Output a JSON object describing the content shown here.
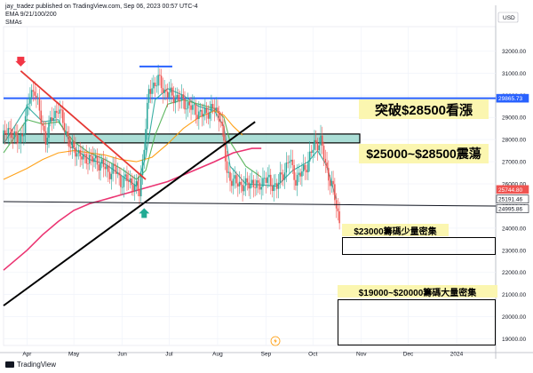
{
  "header": {
    "publisher": "jay_tradez published on TradingView.com, Sep 06, 2023 00:57 UTC-4",
    "indicator": "EMA 9/21/100/200",
    "smas": "SMAs"
  },
  "currency": "USD",
  "footer": {
    "brand": "TradingView"
  },
  "colors": {
    "hline_blue": "#2962ff",
    "zone_teal": "#8fd3c8",
    "price_up": "#26a69a",
    "price_down": "#ef5350",
    "ema9": "#26a69a",
    "ema21": "#4caf50",
    "ema100": "#ff9800",
    "ema200": "#e91e63",
    "trend_red": "#e53935",
    "trend_black": "#000000",
    "annotation_yellow": "#fbf6b0"
  },
  "chart_data": {
    "type": "line",
    "title": "",
    "xlabel": "",
    "ylabel": "",
    "ylim": [
      18700,
      33100
    ],
    "y_ticks": [
      19000,
      20000,
      21000,
      22000,
      23000,
      24000,
      25000,
      26000,
      27000,
      28000,
      29000,
      30000,
      31000,
      32000
    ],
    "x_ticks": [
      {
        "label": "Apr",
        "day": 90
      },
      {
        "label": "May",
        "day": 120
      },
      {
        "label": "Jun",
        "day": 151
      },
      {
        "label": "Jul",
        "day": 181
      },
      {
        "label": "Aug",
        "day": 212
      },
      {
        "label": "Sep",
        "day": 243
      },
      {
        "label": "Oct",
        "day": 273
      },
      {
        "label": "Nov",
        "day": 304
      },
      {
        "label": "Dec",
        "day": 334
      },
      {
        "label": "2024",
        "day": 365
      }
    ],
    "xlim_day": [
      75,
      390
    ],
    "price_labels": [
      {
        "value": 29865.73,
        "text": "29865.73",
        "color": "#2962ff"
      },
      {
        "value": 25744.8,
        "text": "25744.80",
        "color": "#ef5350"
      },
      {
        "value": 25191.46,
        "text": "25191.46",
        "color": "#131722"
      },
      {
        "value": 24995.86,
        "text": "24995.86",
        "color": "#131722"
      }
    ],
    "price_path": {
      "days": [
        75,
        80,
        85,
        88,
        92,
        95,
        98,
        102,
        106,
        110,
        114,
        118,
        122,
        126,
        130,
        134,
        138,
        142,
        146,
        150,
        154,
        158,
        162,
        165,
        168,
        170,
        174,
        178,
        182,
        186,
        190,
        194,
        198,
        202,
        206,
        210,
        214,
        218,
        222,
        226,
        230,
        234,
        238,
        242,
        246,
        250,
        254,
        258,
        262,
        266,
        270,
        274,
        278,
        282,
        286,
        290
      ],
      "close": [
        28200,
        28400,
        27800,
        28600,
        30000,
        30300,
        29200,
        28000,
        29000,
        29400,
        28600,
        27600,
        27500,
        27100,
        27200,
        27000,
        26900,
        26500,
        26700,
        26100,
        26200,
        26000,
        25600,
        27800,
        30100,
        30400,
        30700,
        30200,
        30000,
        29900,
        29700,
        29500,
        29300,
        29100,
        29300,
        29400,
        29000,
        26500,
        26100,
        26000,
        25900,
        26100,
        25800,
        26300,
        26000,
        25900,
        26500,
        27100,
        26200,
        26500,
        27000,
        27800,
        27900,
        26600,
        25700,
        24300
      ]
    },
    "series": [
      {
        "key": "ema9",
        "days": [
          75,
          90,
          100,
          110,
          120,
          130,
          140,
          150,
          160,
          166,
          172,
          180,
          190,
          200,
          210,
          216,
          220,
          230,
          240,
          250,
          260,
          270,
          276,
          282,
          288
        ],
        "values": [
          27800,
          29500,
          28800,
          28900,
          27600,
          27100,
          26900,
          26400,
          25900,
          27200,
          29800,
          30300,
          30000,
          29500,
          29300,
          28600,
          26800,
          26000,
          25950,
          25900,
          26600,
          27000,
          27500,
          26800,
          25300
        ]
      },
      {
        "key": "ema21",
        "days": [
          75,
          90,
          100,
          110,
          120,
          130,
          140,
          150,
          160,
          166,
          172,
          180,
          190,
          200,
          210,
          216,
          220,
          230,
          240
        ],
        "values": [
          27400,
          28900,
          28700,
          28800,
          27900,
          27400,
          27100,
          26700,
          26200,
          26600,
          28200,
          29600,
          29800,
          29600,
          29400,
          29000,
          27900,
          26800,
          26300
        ]
      },
      {
        "key": "ema100",
        "days": [
          75,
          90,
          100,
          110,
          120,
          130,
          140,
          150,
          160,
          170,
          180,
          190,
          200,
          210,
          216,
          222,
          228
        ],
        "values": [
          26200,
          26700,
          27100,
          27400,
          27500,
          27400,
          27300,
          27100,
          27000,
          27200,
          27800,
          28500,
          29000,
          29300,
          29100,
          28600,
          28200
        ]
      },
      {
        "key": "ema200",
        "days": [
          75,
          90,
          100,
          110,
          120,
          130,
          140,
          150,
          160,
          170,
          180,
          190,
          200,
          210,
          216,
          222,
          228,
          234,
          240
        ],
        "values": [
          22100,
          23000,
          23700,
          24300,
          24800,
          25100,
          25300,
          25500,
          25700,
          25900,
          26100,
          26400,
          26700,
          27000,
          27200,
          27400,
          27500,
          27600,
          27600
        ]
      }
    ],
    "trendlines": [
      {
        "key": "red_down",
        "from": {
          "day": 86,
          "value": 31100
        },
        "to": {
          "day": 166,
          "value": 26200
        }
      },
      {
        "key": "black_up",
        "from": {
          "day": 75,
          "value": 20500
        },
        "to": {
          "day": 236,
          "value": 28800
        }
      },
      {
        "key": "blue_top",
        "from": {
          "day": 162,
          "value": 31300
        },
        "to": {
          "day": 183,
          "value": 31300
        }
      },
      {
        "key": "support",
        "from": {
          "day": 75,
          "value": 25200
        },
        "to": {
          "day": 390,
          "value": 24995.86
        }
      }
    ],
    "hlines": [
      {
        "key": "blue_level",
        "value": 29865.73
      }
    ],
    "zones": [
      {
        "key": "teal_zone",
        "from_day": 75,
        "to_day": 303,
        "y_low": 27850,
        "y_high": 28250
      }
    ],
    "markers": [
      {
        "key": "down_arrow",
        "day": 86,
        "value": 31500,
        "dir": "down"
      },
      {
        "key": "up_arrow",
        "day": 165,
        "value": 24700,
        "dir": "up"
      },
      {
        "key": "lightning",
        "day": 249,
        "value": 18900,
        "dir": "icon"
      }
    ],
    "annotations": [
      {
        "key": "breakout",
        "text": "突破$28500看漲"
      },
      {
        "key": "range",
        "text": "$25000~$28500震蕩"
      },
      {
        "key": "low_chips",
        "text": "$23000籌碼少量密集"
      },
      {
        "key": "high_chips",
        "text": "$19000~$20000籌碼大量密集"
      }
    ]
  }
}
